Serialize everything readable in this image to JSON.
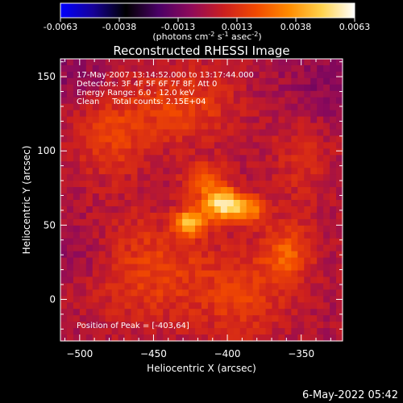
{
  "chart_data": {
    "type": "heatmap",
    "title": "Reconstructed RHESSI Image",
    "xlabel": "Heliocentric X (arcsec)",
    "ylabel": "Heliocentric Y (arcsec)",
    "xlim": [
      -513,
      -322
    ],
    "ylim": [
      -28,
      162
    ],
    "xticks": [
      -500,
      -450,
      -400,
      -350
    ],
    "yticks": [
      0,
      50,
      100,
      150
    ],
    "colorbar": {
      "min": -0.0063,
      "max": 0.0063,
      "ticks": [
        "-0.0063",
        "-0.0038",
        "-0.0013",
        "0.0013",
        "0.0038",
        "0.0063"
      ],
      "unit_main": "(photons cm",
      "unit_sup1": "-2",
      "unit_mid1": " s",
      "unit_sup2": "-1",
      "unit_mid2": " asec",
      "unit_sup3": "-2",
      "unit_end": ")",
      "colormap": [
        "#0000ff",
        "#160098",
        "#000000",
        "#4a0066",
        "#8f0a5a",
        "#cc1f1f",
        "#f24a00",
        "#ff8c00",
        "#ffd24d",
        "#ffffff"
      ]
    },
    "annotations": [
      "17-May-2007 13:14:52.000 to 13:17:44.000",
      "Detectors: 3F 4F 5F 6F 7F 8F, Att 0",
      "Energy Range: 6.0 - 12.0 keV",
      "Clean     Total counts: 2.15E+04"
    ],
    "peak_label": "Position of Peak = [-403,64]",
    "peak": {
      "x": -403,
      "y": 64
    },
    "sources": [
      {
        "x": -403,
        "y": 64,
        "sx": 9,
        "sy": 7,
        "amp": 0.0054
      },
      {
        "x": -425,
        "y": 52,
        "sx": 7,
        "sy": 6,
        "amp": 0.0042
      },
      {
        "x": -385,
        "y": 60,
        "sx": 8,
        "sy": 7,
        "amp": 0.003
      },
      {
        "x": -415,
        "y": 80,
        "sx": 10,
        "sy": 8,
        "amp": 0.0026
      },
      {
        "x": -360,
        "y": 30,
        "sx": 12,
        "sy": 14,
        "amp": 0.0022
      },
      {
        "x": -480,
        "y": 110,
        "sx": 18,
        "sy": 20,
        "amp": 0.0016
      },
      {
        "x": -450,
        "y": 20,
        "sx": 30,
        "sy": 25,
        "amp": 0.0017
      },
      {
        "x": -430,
        "y": 130,
        "sx": 25,
        "sy": 18,
        "amp": 0.0017
      },
      {
        "x": -390,
        "y": 0,
        "sx": 20,
        "sy": 20,
        "amp": 0.0015
      },
      {
        "x": -350,
        "y": 100,
        "sx": 15,
        "sy": 30,
        "amp": 0.001
      },
      {
        "x": -500,
        "y": 30,
        "sx": 15,
        "sy": 15,
        "amp": -0.0008
      },
      {
        "x": -340,
        "y": 140,
        "sx": 20,
        "sy": 20,
        "amp": -0.001
      },
      {
        "x": -505,
        "y": 150,
        "sx": 20,
        "sy": 15,
        "amp": -0.0008
      }
    ]
  },
  "footer": {
    "timestamp": "6-May-2022 05:42"
  }
}
